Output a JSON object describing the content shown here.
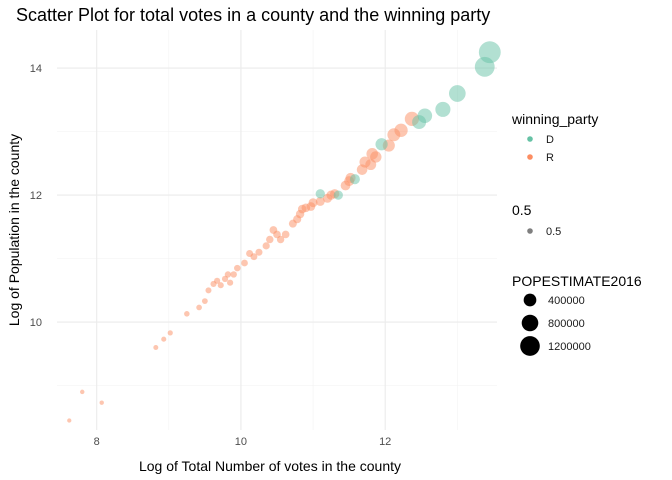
{
  "chart_data": {
    "type": "scatter",
    "title": "Scatter Plot for total votes in a county and the winning party",
    "xlabel": "Log of Total Number of votes in the county",
    "ylabel": "Log of Population in the county",
    "xlim": [
      7.45,
      13.55
    ],
    "ylim": [
      8.3,
      14.6
    ],
    "x_ticks": [
      8,
      10,
      12
    ],
    "y_ticks": [
      10,
      12,
      14
    ],
    "grid": true,
    "alpha": 0.5,
    "colors": {
      "D": "#66c2a5",
      "R": "#fc8d62"
    },
    "legend_placement": "right",
    "legend": {
      "color_title": "winning_party",
      "color_entries": [
        {
          "label": "D",
          "key": "D"
        },
        {
          "label": "R",
          "key": "R"
        }
      ],
      "alpha_title": "0.5",
      "alpha_entries": [
        {
          "label": "0.5"
        }
      ],
      "size_title": "POPESTIMATE2016",
      "size_entries": [
        {
          "label": "400000",
          "value": 400000
        },
        {
          "label": "800000",
          "value": 800000
        },
        {
          "label": "1200000",
          "value": 1200000
        }
      ]
    },
    "series": [
      {
        "key": "R",
        "points": [
          [
            7.62,
            8.45,
            5000
          ],
          [
            7.8,
            8.9,
            7000
          ],
          [
            8.07,
            8.73,
            6500
          ],
          [
            8.82,
            9.6,
            14000
          ],
          [
            8.93,
            9.73,
            16000
          ],
          [
            9.02,
            9.83,
            18000
          ],
          [
            9.25,
            10.13,
            24000
          ],
          [
            9.42,
            10.23,
            27000
          ],
          [
            9.5,
            10.33,
            30000
          ],
          [
            9.55,
            10.5,
            35000
          ],
          [
            9.62,
            10.6,
            38000
          ],
          [
            9.67,
            10.65,
            40000
          ],
          [
            9.72,
            10.58,
            38000
          ],
          [
            9.78,
            10.68,
            42000
          ],
          [
            9.82,
            10.75,
            45000
          ],
          [
            9.9,
            10.75,
            46000
          ],
          [
            9.85,
            10.62,
            40000
          ],
          [
            9.95,
            10.85,
            50000
          ],
          [
            10.05,
            10.93,
            55000
          ],
          [
            10.12,
            11.08,
            63000
          ],
          [
            10.18,
            11.03,
            60000
          ],
          [
            10.25,
            11.1,
            65000
          ],
          [
            10.35,
            11.2,
            72000
          ],
          [
            10.4,
            11.3,
            80000
          ],
          [
            10.45,
            11.45,
            92000
          ],
          [
            10.5,
            11.38,
            87000
          ],
          [
            10.55,
            11.3,
            80000
          ],
          [
            10.62,
            11.38,
            87000
          ],
          [
            10.72,
            11.55,
            102000
          ],
          [
            10.78,
            11.62,
            110000
          ],
          [
            10.82,
            11.7,
            120000
          ],
          [
            10.85,
            11.78,
            130000
          ],
          [
            10.9,
            11.8,
            133000
          ],
          [
            10.97,
            11.82,
            136000
          ],
          [
            11.0,
            11.88,
            145000
          ],
          [
            11.1,
            11.9,
            148000
          ],
          [
            11.2,
            11.95,
            155000
          ],
          [
            11.25,
            12.0,
            162000
          ],
          [
            11.3,
            12.02,
            166000
          ],
          [
            11.45,
            12.15,
            190000
          ],
          [
            11.5,
            12.22,
            202000
          ],
          [
            11.52,
            12.27,
            213000
          ],
          [
            11.68,
            12.4,
            243000
          ],
          [
            11.72,
            12.52,
            274000
          ],
          [
            11.8,
            12.48,
            263000
          ],
          [
            11.82,
            12.65,
            312000
          ],
          [
            11.87,
            12.6,
            297000
          ],
          [
            12.05,
            12.78,
            355000
          ],
          [
            12.12,
            12.95,
            421000
          ],
          [
            12.22,
            13.02,
            452000
          ],
          [
            12.37,
            13.2,
            540000
          ]
        ]
      },
      {
        "key": "D",
        "points": [
          [
            11.1,
            12.02,
            166000
          ],
          [
            11.35,
            12.0,
            162000
          ],
          [
            11.58,
            12.25,
            208000
          ],
          [
            11.95,
            12.8,
            362000
          ],
          [
            12.47,
            13.15,
            515000
          ],
          [
            12.55,
            13.25,
            570000
          ],
          [
            12.8,
            13.35,
            628000
          ],
          [
            13.0,
            13.6,
            806000
          ],
          [
            13.38,
            14.02,
            1227000
          ],
          [
            13.45,
            14.25,
            1545000
          ]
        ]
      }
    ]
  }
}
